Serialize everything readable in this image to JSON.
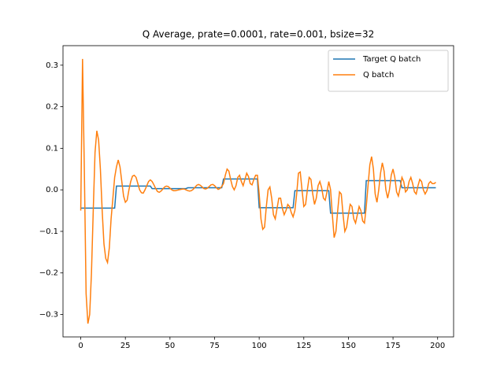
{
  "chart_data": {
    "type": "line",
    "title": "Q Average, prate=0.0001, rate=0.001, bsize=32",
    "x": [
      0,
      1,
      2,
      3,
      4,
      5,
      6,
      7,
      8,
      9,
      10,
      11,
      12,
      13,
      14,
      15,
      16,
      17,
      18,
      19,
      20,
      21,
      22,
      23,
      24,
      25,
      26,
      27,
      28,
      29,
      30,
      31,
      32,
      33,
      34,
      35,
      36,
      37,
      38,
      39,
      40,
      41,
      42,
      43,
      44,
      45,
      46,
      47,
      48,
      49,
      50,
      51,
      52,
      53,
      54,
      55,
      56,
      57,
      58,
      59,
      60,
      61,
      62,
      63,
      64,
      65,
      66,
      67,
      68,
      69,
      70,
      71,
      72,
      73,
      74,
      75,
      76,
      77,
      78,
      79,
      80,
      81,
      82,
      83,
      84,
      85,
      86,
      87,
      88,
      89,
      90,
      91,
      92,
      93,
      94,
      95,
      96,
      97,
      98,
      99,
      100,
      101,
      102,
      103,
      104,
      105,
      106,
      107,
      108,
      109,
      110,
      111,
      112,
      113,
      114,
      115,
      116,
      117,
      118,
      119,
      120,
      121,
      122,
      123,
      124,
      125,
      126,
      127,
      128,
      129,
      130,
      131,
      132,
      133,
      134,
      135,
      136,
      137,
      138,
      139,
      140,
      141,
      142,
      143,
      144,
      145,
      146,
      147,
      148,
      149,
      150,
      151,
      152,
      153,
      154,
      155,
      156,
      157,
      158,
      159,
      160,
      161,
      162,
      163,
      164,
      165,
      166,
      167,
      168,
      169,
      170,
      171,
      172,
      173,
      174,
      175,
      176,
      177,
      178,
      179,
      180,
      181,
      182,
      183,
      184,
      185,
      186,
      187,
      188,
      189,
      190,
      191,
      192,
      193,
      194,
      195,
      196,
      197,
      198,
      199
    ],
    "series": [
      {
        "name": "Target Q batch",
        "color": "#1f77b4",
        "values": [
          -0.044,
          -0.044,
          -0.044,
          -0.044,
          -0.044,
          -0.044,
          -0.044,
          -0.044,
          -0.044,
          -0.044,
          -0.044,
          -0.044,
          -0.044,
          -0.044,
          -0.044,
          -0.044,
          -0.044,
          -0.044,
          -0.044,
          -0.044,
          0.009,
          0.009,
          0.009,
          0.009,
          0.009,
          0.009,
          0.009,
          0.009,
          0.009,
          0.009,
          0.009,
          0.009,
          0.009,
          0.009,
          0.009,
          0.009,
          0.009,
          0.009,
          0.009,
          0.009,
          0.003,
          0.003,
          0.003,
          0.003,
          0.003,
          0.003,
          0.003,
          0.003,
          0.003,
          0.003,
          0.003,
          0.003,
          0.003,
          0.003,
          0.003,
          0.003,
          0.003,
          0.003,
          0.003,
          0.003,
          0.005,
          0.005,
          0.005,
          0.005,
          0.005,
          0.005,
          0.005,
          0.005,
          0.005,
          0.005,
          0.005,
          0.005,
          0.005,
          0.005,
          0.005,
          0.005,
          0.005,
          0.005,
          0.005,
          0.005,
          0.026,
          0.026,
          0.026,
          0.026,
          0.026,
          0.026,
          0.026,
          0.026,
          0.026,
          0.026,
          0.026,
          0.026,
          0.026,
          0.026,
          0.026,
          0.026,
          0.026,
          0.026,
          0.026,
          0.026,
          -0.043,
          -0.043,
          -0.043,
          -0.043,
          -0.043,
          -0.043,
          -0.043,
          -0.043,
          -0.043,
          -0.043,
          -0.043,
          -0.043,
          -0.043,
          -0.043,
          -0.043,
          -0.043,
          -0.043,
          -0.043,
          -0.043,
          -0.043,
          -0.002,
          -0.002,
          -0.002,
          -0.002,
          -0.002,
          -0.002,
          -0.002,
          -0.002,
          -0.002,
          -0.002,
          -0.002,
          -0.002,
          -0.002,
          -0.002,
          -0.002,
          -0.002,
          -0.002,
          -0.002,
          -0.002,
          -0.002,
          -0.056,
          -0.056,
          -0.056,
          -0.056,
          -0.056,
          -0.056,
          -0.056,
          -0.056,
          -0.056,
          -0.056,
          -0.056,
          -0.056,
          -0.056,
          -0.056,
          -0.056,
          -0.056,
          -0.056,
          -0.056,
          -0.056,
          -0.056,
          0.022,
          0.022,
          0.022,
          0.022,
          0.022,
          0.022,
          0.022,
          0.022,
          0.022,
          0.022,
          0.022,
          0.022,
          0.022,
          0.022,
          0.022,
          0.022,
          0.022,
          0.022,
          0.022,
          0.022,
          0.005,
          0.005,
          0.005,
          0.005,
          0.005,
          0.005,
          0.005,
          0.005,
          0.005,
          0.005,
          0.005,
          0.005,
          0.005,
          0.005,
          0.005,
          0.005,
          0.005,
          0.005,
          0.005,
          0.005
        ]
      },
      {
        "name": "Q batch",
        "color": "#ff7f0e",
        "values": [
          -0.05,
          0.315,
          0.05,
          -0.25,
          -0.322,
          -0.3,
          -0.2,
          -0.05,
          0.09,
          0.142,
          0.12,
          0.05,
          -0.05,
          -0.13,
          -0.165,
          -0.175,
          -0.14,
          -0.07,
          -0.02,
          0.03,
          0.055,
          0.072,
          0.055,
          0.02,
          -0.015,
          -0.03,
          -0.025,
          0.0,
          0.02,
          0.033,
          0.035,
          0.03,
          0.015,
          0.0,
          -0.007,
          -0.008,
          0.0,
          0.01,
          0.02,
          0.024,
          0.02,
          0.012,
          0.003,
          -0.004,
          -0.006,
          -0.003,
          0.002,
          0.007,
          0.009,
          0.008,
          0.004,
          0.0,
          -0.002,
          -0.002,
          -0.001,
          0.0,
          0.001,
          0.002,
          0.002,
          0.0,
          -0.002,
          -0.003,
          -0.002,
          0.001,
          0.006,
          0.011,
          0.013,
          0.011,
          0.007,
          0.003,
          0.002,
          0.004,
          0.008,
          0.012,
          0.013,
          0.01,
          0.005,
          0.001,
          0.003,
          0.008,
          0.015,
          0.035,
          0.05,
          0.045,
          0.025,
          0.008,
          0.0,
          0.01,
          0.03,
          0.035,
          0.02,
          0.01,
          0.025,
          0.04,
          0.032,
          0.015,
          0.012,
          0.025,
          0.035,
          0.035,
          -0.01,
          -0.07,
          -0.095,
          -0.09,
          -0.04,
          0.0,
          0.007,
          -0.02,
          -0.06,
          -0.07,
          -0.045,
          -0.02,
          -0.02,
          -0.045,
          -0.06,
          -0.05,
          -0.035,
          -0.04,
          -0.055,
          -0.065,
          -0.05,
          -0.01,
          0.04,
          0.043,
          0.0,
          -0.04,
          -0.035,
          0.0,
          0.03,
          0.025,
          -0.01,
          -0.035,
          -0.02,
          0.01,
          0.02,
          0.005,
          -0.02,
          -0.025,
          -0.005,
          0.02,
          0.0,
          -0.06,
          -0.115,
          -0.1,
          -0.05,
          -0.005,
          -0.01,
          -0.06,
          -0.1,
          -0.09,
          -0.06,
          -0.035,
          -0.04,
          -0.07,
          -0.08,
          -0.06,
          -0.04,
          -0.05,
          -0.075,
          -0.08,
          -0.04,
          0.01,
          0.06,
          0.08,
          0.05,
          -0.01,
          -0.03,
          0.0,
          0.04,
          0.065,
          0.045,
          0.0,
          -0.02,
          0.0,
          0.035,
          0.05,
          0.03,
          -0.005,
          -0.015,
          0.005,
          0.03,
          0.02,
          -0.005,
          0.0,
          0.02,
          0.03,
          0.015,
          -0.005,
          -0.01,
          0.01,
          0.025,
          0.02,
          0.0,
          -0.01,
          -0.002,
          0.015,
          0.02,
          0.015,
          0.015,
          0.018
        ]
      }
    ],
    "xlim": [
      -9.95,
      208.95
    ],
    "xticks": [
      0,
      25,
      50,
      75,
      100,
      125,
      150,
      175,
      200
    ],
    "ylim": [
      -0.354,
      0.347
    ],
    "yticks": [
      {
        "value": -0.3,
        "label": "−0.3"
      },
      {
        "value": -0.2,
        "label": "−0.2"
      },
      {
        "value": -0.1,
        "label": "−0.1"
      },
      {
        "value": 0,
        "label": "0.0"
      },
      {
        "value": 0.1,
        "label": "0.1"
      },
      {
        "value": 0.2,
        "label": "0.2"
      },
      {
        "value": 0.3,
        "label": "0.3"
      }
    ],
    "legend": "upper right"
  }
}
